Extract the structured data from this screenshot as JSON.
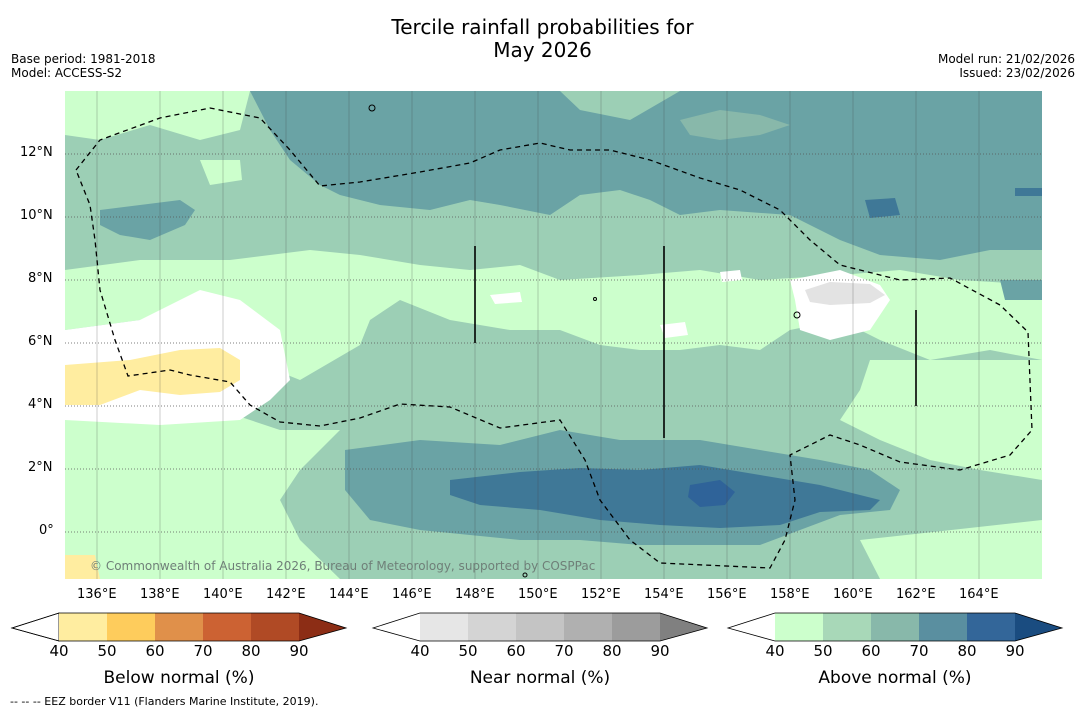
{
  "header": {
    "title_line1": "Tercile rainfall probabilities for",
    "title_line2": "May 2026",
    "base_period": "Base period: 1981-2018",
    "model": "Model: ACCESS-S2",
    "model_run": "Model run: 21/02/2026",
    "issued": "Issued: 23/02/2026"
  },
  "map": {
    "lat_labels": [
      "12°N",
      "10°N",
      "8°N",
      "6°N",
      "4°N",
      "2°N",
      "0°"
    ],
    "lon_labels": [
      "136°E",
      "138°E",
      "140°E",
      "142°E",
      "144°E",
      "146°E",
      "148°E",
      "150°E",
      "152°E",
      "154°E",
      "156°E",
      "158°E",
      "160°E",
      "162°E",
      "164°E"
    ],
    "copyright": "© Commonwealth of Australia 2026, Bureau of Meteorology, supported by COSPPac"
  },
  "colorbars": {
    "below": {
      "title": "Below normal (%)",
      "ticks": [
        "40",
        "50",
        "60",
        "70",
        "80",
        "90"
      ],
      "colors": [
        "#ffffff",
        "#ffeda0",
        "#fecc5c",
        "#e0904a",
        "#cc6233",
        "#b04a25",
        "#8c2d15"
      ]
    },
    "near": {
      "title": "Near normal (%)",
      "ticks": [
        "40",
        "50",
        "60",
        "70",
        "80",
        "90"
      ],
      "colors": [
        "#ffffff",
        "#e6e6e6",
        "#d4d4d4",
        "#c4c4c4",
        "#b0b0b0",
        "#9c9c9c",
        "#808080"
      ]
    },
    "above": {
      "title": "Above normal (%)",
      "ticks": [
        "40",
        "50",
        "60",
        "70",
        "80",
        "90"
      ],
      "colors": [
        "#ffffff",
        "#ccffcc",
        "#a8d8b8",
        "#88b8aa",
        "#5a8fa0",
        "#336699",
        "#1a4c80"
      ]
    }
  },
  "footnote": "--  --  -- EEZ border V11 (Flanders Marine Institute, 2019)."
}
